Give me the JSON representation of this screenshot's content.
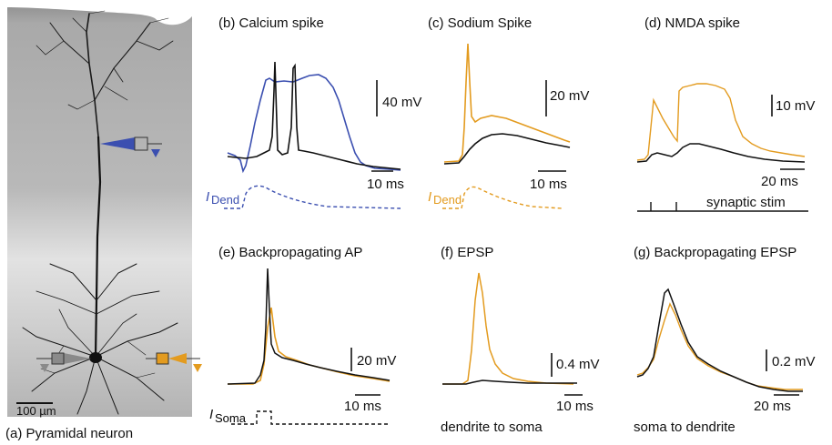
{
  "colors": {
    "blue": "#3b4fb0",
    "orange": "#e39b1f",
    "black": "#111111",
    "micrograph_bg": "#bdbdbd"
  },
  "panel_a": {
    "scale_bar": "100 µm",
    "caption": "(a) Pyramidal neuron"
  },
  "panel_b": {
    "title": "(b) Calcium spike",
    "v_scale": "40 mV",
    "t_scale": "10 ms",
    "current_label_i": "I",
    "current_label_sub": "Dend"
  },
  "panel_c": {
    "title": "(c) Sodium Spike",
    "v_scale": "20 mV",
    "t_scale": "10 ms",
    "current_label_i": "I",
    "current_label_sub": "Dend"
  },
  "panel_d": {
    "title": "(d) NMDA spike",
    "v_scale": "10 mV",
    "t_scale": "20 ms",
    "stim_label": "synaptic stim"
  },
  "panel_e": {
    "title": "(e) Backpropagating AP",
    "v_scale": "20 mV",
    "t_scale": "10 ms",
    "current_label_i": "I",
    "current_label_sub": "Soma"
  },
  "panel_f": {
    "title": "(f) EPSP",
    "v_scale": "0.4 mV",
    "t_scale": "10 ms",
    "caption": "dendrite to soma"
  },
  "panel_g": {
    "title": "(g) Backpropagating EPSP",
    "v_scale": "0.2 mV",
    "t_scale": "20 ms",
    "caption": "soma to dendrite"
  }
}
